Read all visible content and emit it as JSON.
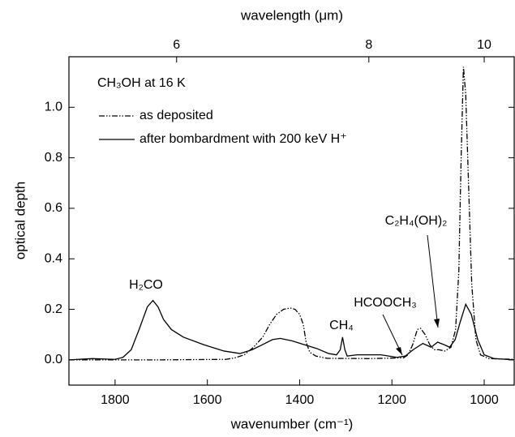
{
  "chart_data": {
    "type": "line",
    "xlabel": "wavenumber (cm⁻¹)",
    "ylabel": "optical depth",
    "x2label": "wavelength (μm)",
    "xlim": [
      1900,
      935
    ],
    "ylim": [
      -0.1,
      1.2
    ],
    "xticks": [
      1800,
      1600,
      1400,
      1200,
      1000
    ],
    "yticks": [
      {
        "value": 0,
        "label": "0.0"
      },
      {
        "value": 0.2,
        "label": "0.2"
      },
      {
        "value": 0.4,
        "label": "0.4"
      },
      {
        "value": 0.6,
        "label": "0.6"
      },
      {
        "value": 0.8,
        "label": "0.8"
      },
      {
        "value": 1,
        "label": "1.0"
      }
    ],
    "x2ticks": [
      6,
      8,
      10
    ],
    "legend_title": "CH₃OH at 16 K",
    "annotations": [
      "H₂CO",
      "CH₄",
      "HCOOCH₃",
      "C₂H₄(OH)₂"
    ],
    "series": [
      {
        "name": "as deposited",
        "color": "#000000",
        "dash": "dash-dot-dot",
        "x": [
          1900,
          1700,
          1560,
          1540,
          1520,
          1500,
          1480,
          1465,
          1450,
          1435,
          1420,
          1410,
          1400,
          1392,
          1386,
          1378,
          1365,
          1340,
          1250,
          1175,
          1165,
          1155,
          1145,
          1138,
          1128,
          1118,
          1108,
          1098,
          1085,
          1072,
          1062,
          1055,
          1050,
          1045,
          1040,
          1034,
          1027,
          1018,
          1008,
          990,
          935
        ],
        "values": [
          0.0,
          0.0,
          0.002,
          0.008,
          0.02,
          0.05,
          0.09,
          0.14,
          0.18,
          0.2,
          0.205,
          0.2,
          0.18,
          0.14,
          0.07,
          0.03,
          0.015,
          0.006,
          0.005,
          0.008,
          0.02,
          0.06,
          0.12,
          0.125,
          0.1,
          0.06,
          0.04,
          0.04,
          0.035,
          0.05,
          0.12,
          0.35,
          0.8,
          1.16,
          1.05,
          0.7,
          0.3,
          0.08,
          0.02,
          0.005,
          0.002
        ]
      },
      {
        "name": "after bombardment with 200 keV H⁺",
        "color": "#000000",
        "dash": "solid",
        "x": [
          1900,
          1850,
          1800,
          1783,
          1765,
          1748,
          1730,
          1718,
          1707,
          1695,
          1678,
          1652,
          1608,
          1564,
          1529,
          1503,
          1486,
          1459,
          1442,
          1416,
          1390,
          1363,
          1337,
          1320,
          1312,
          1307,
          1302,
          1297,
          1276,
          1224,
          1189,
          1171,
          1154,
          1133,
          1115,
          1101,
          1087,
          1075,
          1063,
          1052,
          1040,
          1028,
          1014,
          1000,
          979,
          935
        ],
        "values": [
          0.0,
          0.005,
          0.002,
          0.01,
          0.04,
          0.12,
          0.21,
          0.235,
          0.21,
          0.16,
          0.12,
          0.09,
          0.06,
          0.035,
          0.025,
          0.04,
          0.055,
          0.08,
          0.085,
          0.075,
          0.06,
          0.045,
          0.025,
          0.02,
          0.04,
          0.09,
          0.04,
          0.015,
          0.02,
          0.02,
          0.01,
          0.015,
          0.04,
          0.065,
          0.05,
          0.07,
          0.06,
          0.05,
          0.08,
          0.15,
          0.22,
          0.18,
          0.08,
          0.02,
          0.005,
          0.0
        ]
      }
    ]
  }
}
